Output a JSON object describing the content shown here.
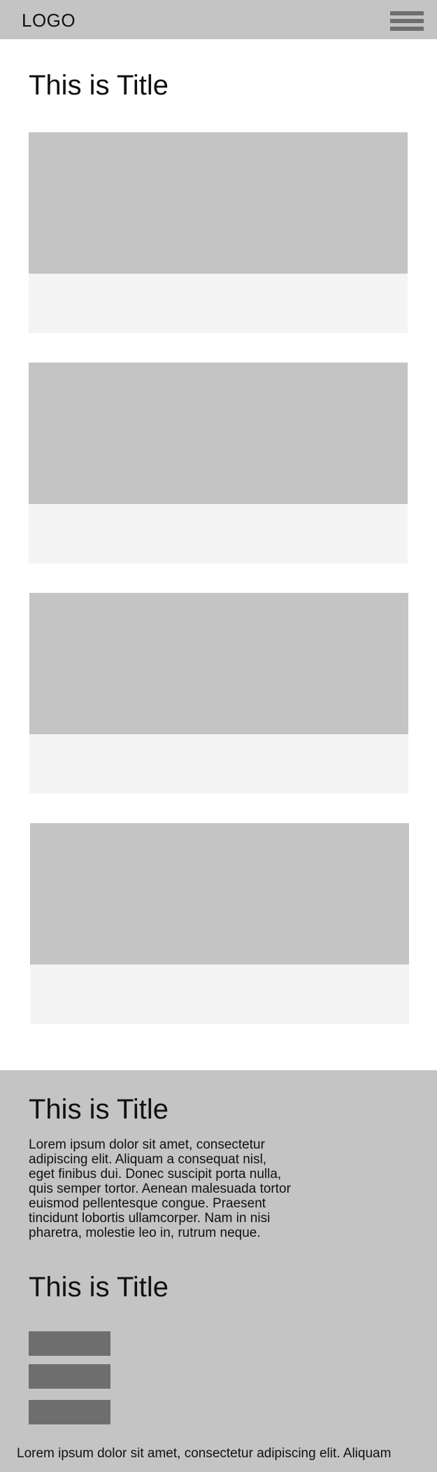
{
  "header": {
    "logo_text": "LOGO",
    "menu_icon": "hamburger-menu-icon"
  },
  "main": {
    "title": "This is Title",
    "cards": [
      {
        "image": "image-placeholder"
      },
      {
        "image": "image-placeholder"
      },
      {
        "image": "image-placeholder"
      },
      {
        "image": "image-placeholder"
      }
    ]
  },
  "footer": {
    "title_1": "This is Title",
    "paragraph": "Lorem ipsum dolor sit amet, consectetur adipiscing elit. Aliquam a consequat nisl, eget finibus dui. Donec suscipit porta nulla, quis semper tortor. Aenean malesuada tortor euismod pellentesque congue. Praesent tincidunt lobortis ullamcorper. Nam in nisi pharetra, molestie leo in, rutrum neque.",
    "title_2": "This is Title",
    "link_count": 3,
    "bottom_text": "Lorem ipsum dolor sit amet, consectetur adipiscing elit. Aliquam"
  },
  "colors": {
    "header_bg": "#c4c4c4",
    "placeholder": "#c4c4c4",
    "card_body": "#f4f4f4",
    "button": "#6e6e6e",
    "text": "#111111"
  }
}
